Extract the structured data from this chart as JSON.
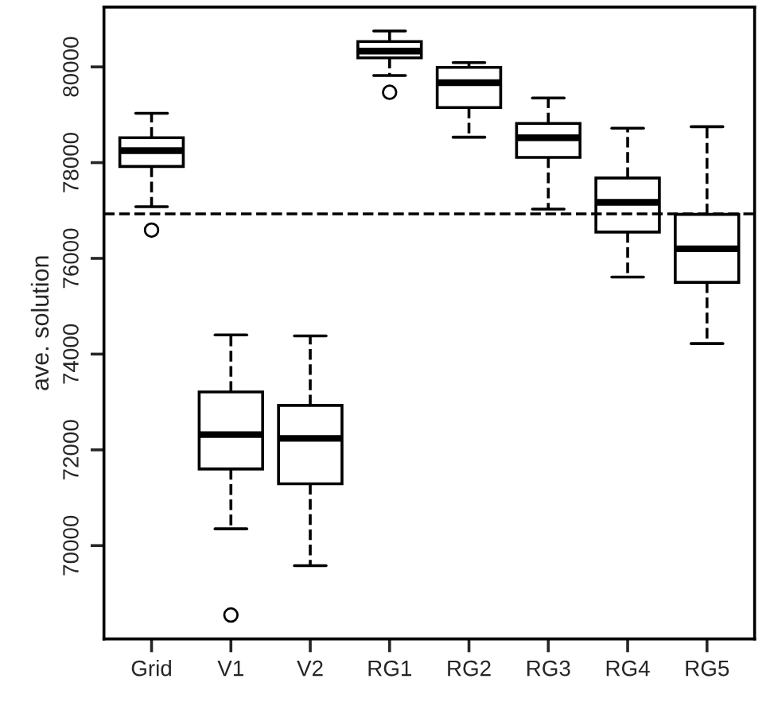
{
  "chart_data": {
    "type": "box",
    "ylabel": "ave. solution",
    "categories": [
      "Grid",
      "V1",
      "V2",
      "RG1",
      "RG2",
      "RG3",
      "RG4",
      "RG5"
    ],
    "boxes": [
      {
        "low": 77080,
        "q1": 77920,
        "median": 78250,
        "q3": 78520,
        "high": 79030,
        "outliers": [
          76590
        ]
      },
      {
        "low": 70350,
        "q1": 71600,
        "median": 72320,
        "q3": 73210,
        "high": 74400,
        "outliers": [
          68550
        ]
      },
      {
        "low": 69580,
        "q1": 71290,
        "median": 72240,
        "q3": 72930,
        "high": 74380
      },
      {
        "low": 79820,
        "q1": 80190,
        "median": 80330,
        "q3": 80530,
        "high": 80750,
        "outliers": [
          79470
        ]
      },
      {
        "low": 78530,
        "q1": 79150,
        "median": 79670,
        "q3": 79990,
        "high": 80090
      },
      {
        "low": 77030,
        "q1": 78110,
        "median": 78520,
        "q3": 78820,
        "high": 79350
      },
      {
        "low": 75610,
        "q1": 76550,
        "median": 77170,
        "q3": 77680,
        "high": 78720
      },
      {
        "low": 74220,
        "q1": 75500,
        "median": 76200,
        "q3": 76920,
        "high": 78750
      }
    ],
    "color": "#000000",
    "line_style": "dashed",
    "ylim": [
      68050,
      81250
    ],
    "yticks": [
      70000,
      72000,
      74000,
      76000,
      78000,
      80000
    ],
    "ref_lines": [
      {
        "axis": "y",
        "value": 76930,
        "color": "#000000",
        "line_style": "dashed"
      }
    ],
    "grid": false,
    "legend": false
  }
}
